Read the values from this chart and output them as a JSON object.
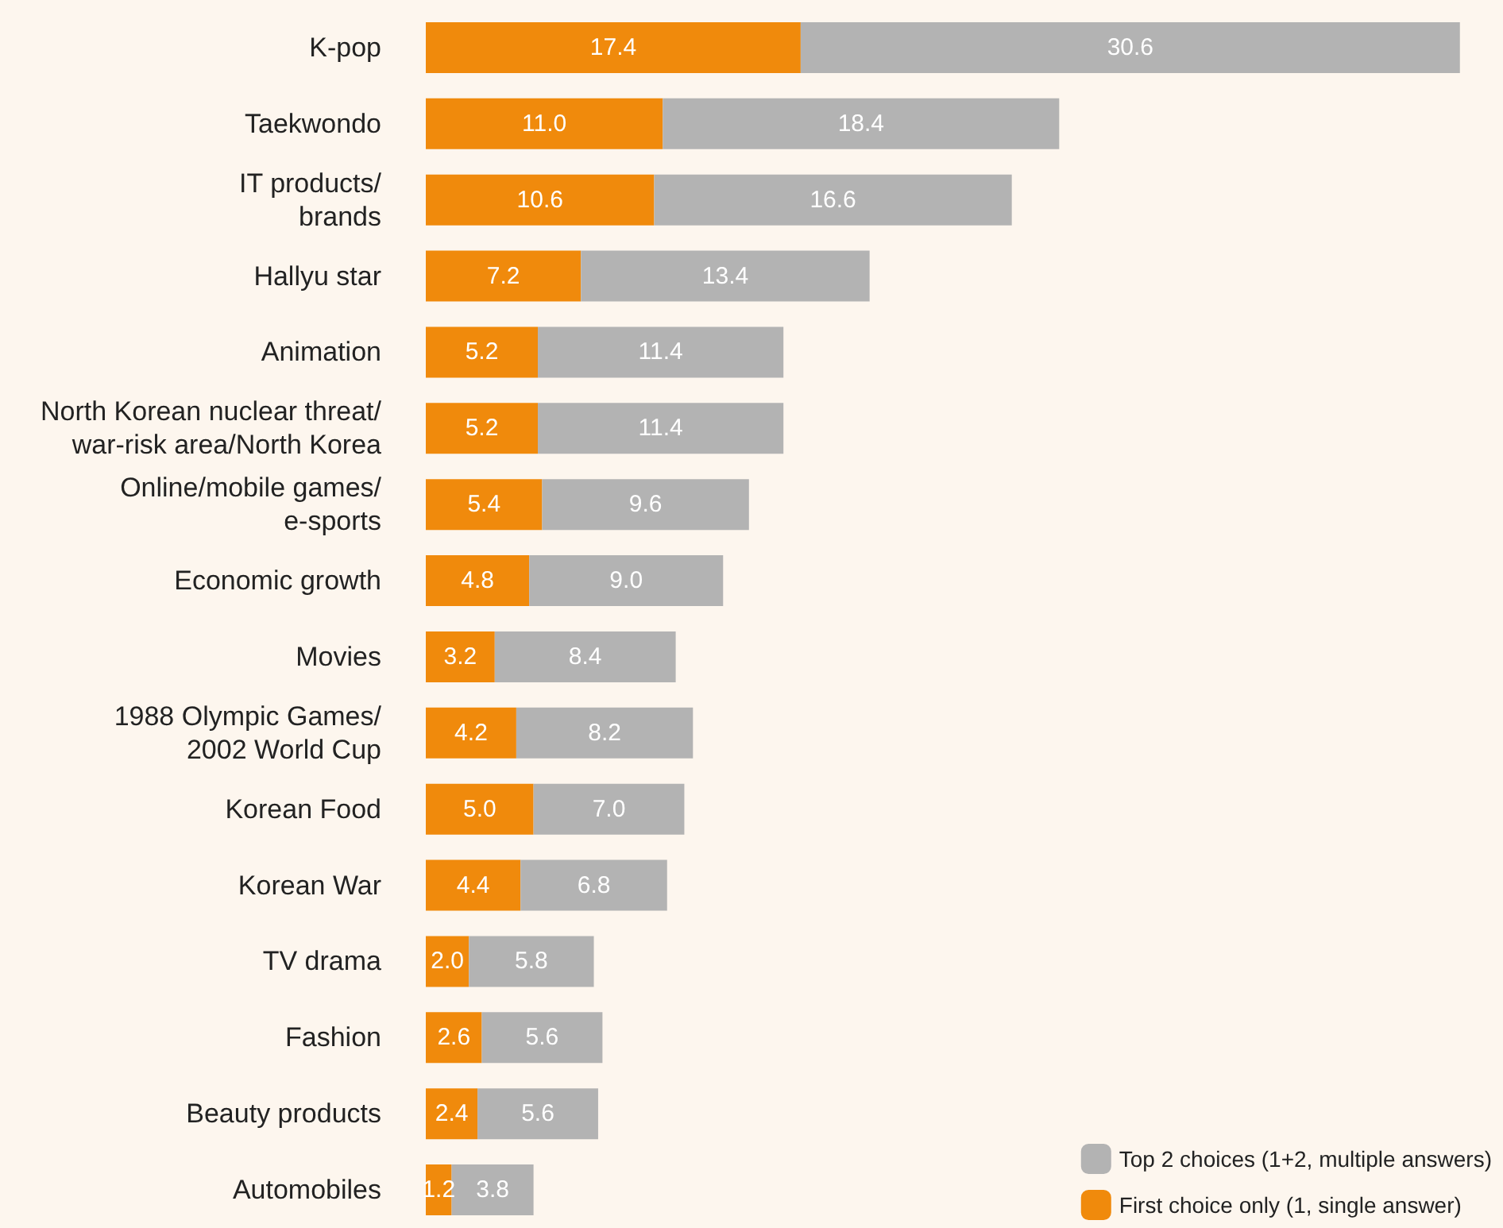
{
  "chart_data": {
    "type": "bar",
    "orientation": "horizontal",
    "stacked": true,
    "legend": "bottom right",
    "categories": [
      "K-pop",
      "Taekwondo",
      "IT products/\nbrands",
      "Hallyu star",
      "Animation",
      "North Korean nuclear threat/\nwar-risk area/North Korea",
      "Online/mobile games/\ne-sports",
      "Economic growth",
      "Movies",
      "1988 Olympic Games/\n2002 World Cup",
      "Korean Food",
      "Korean War",
      "TV drama",
      "Fashion",
      "Beauty products",
      "Automobiles"
    ],
    "series": [
      {
        "name": "First choice only (1, single answer)",
        "color": "#f08a0c",
        "values": [
          17.4,
          11,
          10.6,
          7.2,
          5.2,
          5.2,
          5.4,
          4.8,
          3.2,
          4.2,
          5,
          4.4,
          2,
          2.6,
          2.4,
          1.2
        ],
        "value_labels": [
          "17.4",
          "11.0",
          "10.6",
          "7.2",
          "5.2",
          "5.2",
          "5.4",
          "4.8",
          "3.2",
          "4.2",
          "5.0",
          "4.4",
          "2.0",
          "2.6",
          "2.4",
          "1.2"
        ]
      },
      {
        "name": "Top 2 choices (1+2, multiple answers)",
        "color": "#b3b3b3",
        "values": [
          30.6,
          18.4,
          16.6,
          13.4,
          11.4,
          11.4,
          9.6,
          9,
          8.4,
          8.2,
          7,
          6.8,
          5.8,
          5.6,
          5.6,
          3.8
        ],
        "value_labels": [
          "30.6",
          "18.4",
          "16.6",
          "13.4",
          "11.4",
          "11.4",
          "9.6",
          "9.0",
          "8.4",
          "8.2",
          "7.0",
          "6.8",
          "5.8",
          "5.6",
          "5.6",
          "3.8"
        ]
      }
    ]
  }
}
